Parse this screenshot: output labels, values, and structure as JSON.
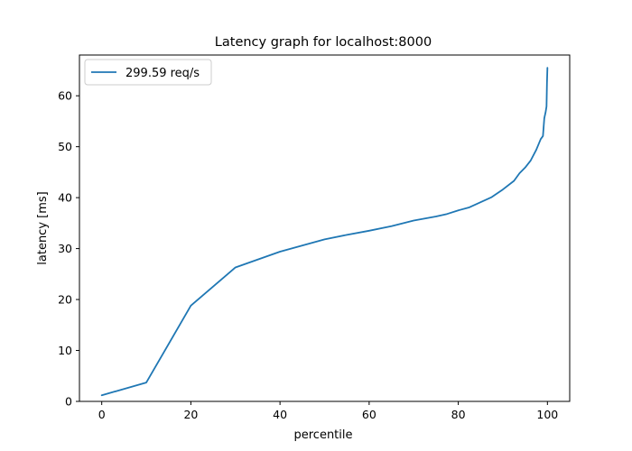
{
  "chart_data": {
    "type": "line",
    "title": "Latency graph for localhost:8000",
    "xlabel": "percentile",
    "ylabel": "latency [ms]",
    "xlim": [
      -5,
      105
    ],
    "ylim": [
      0,
      68
    ],
    "xticks": [
      0,
      20,
      40,
      60,
      80,
      100
    ],
    "yticks": [
      0,
      10,
      20,
      30,
      40,
      50,
      60
    ],
    "grid": false,
    "legend_position": "top-left",
    "series": [
      {
        "name": "299.59 req/s",
        "color": "#1f77b4",
        "points": [
          [
            0,
            1.2
          ],
          [
            10,
            3.7
          ],
          [
            20,
            18.8
          ],
          [
            30,
            26.3
          ],
          [
            40,
            29.4
          ],
          [
            50,
            31.8
          ],
          [
            55,
            32.7
          ],
          [
            60,
            33.5
          ],
          [
            65,
            34.4
          ],
          [
            70,
            35.5
          ],
          [
            75,
            36.3
          ],
          [
            77.5,
            36.8
          ],
          [
            80,
            37.5
          ],
          [
            82.5,
            38.1
          ],
          [
            85,
            39.1
          ],
          [
            87.5,
            40.1
          ],
          [
            90,
            41.6
          ],
          [
            92.5,
            43.3
          ],
          [
            93.75,
            44.8
          ],
          [
            95,
            45.9
          ],
          [
            96.25,
            47.3
          ],
          [
            97.5,
            49.4
          ],
          [
            98.5,
            51.5
          ],
          [
            99,
            52.1
          ],
          [
            99.3,
            55.6
          ],
          [
            99.6,
            56.8
          ],
          [
            99.8,
            57.9
          ],
          [
            99.9,
            62.5
          ],
          [
            100,
            65.5
          ]
        ]
      }
    ]
  }
}
